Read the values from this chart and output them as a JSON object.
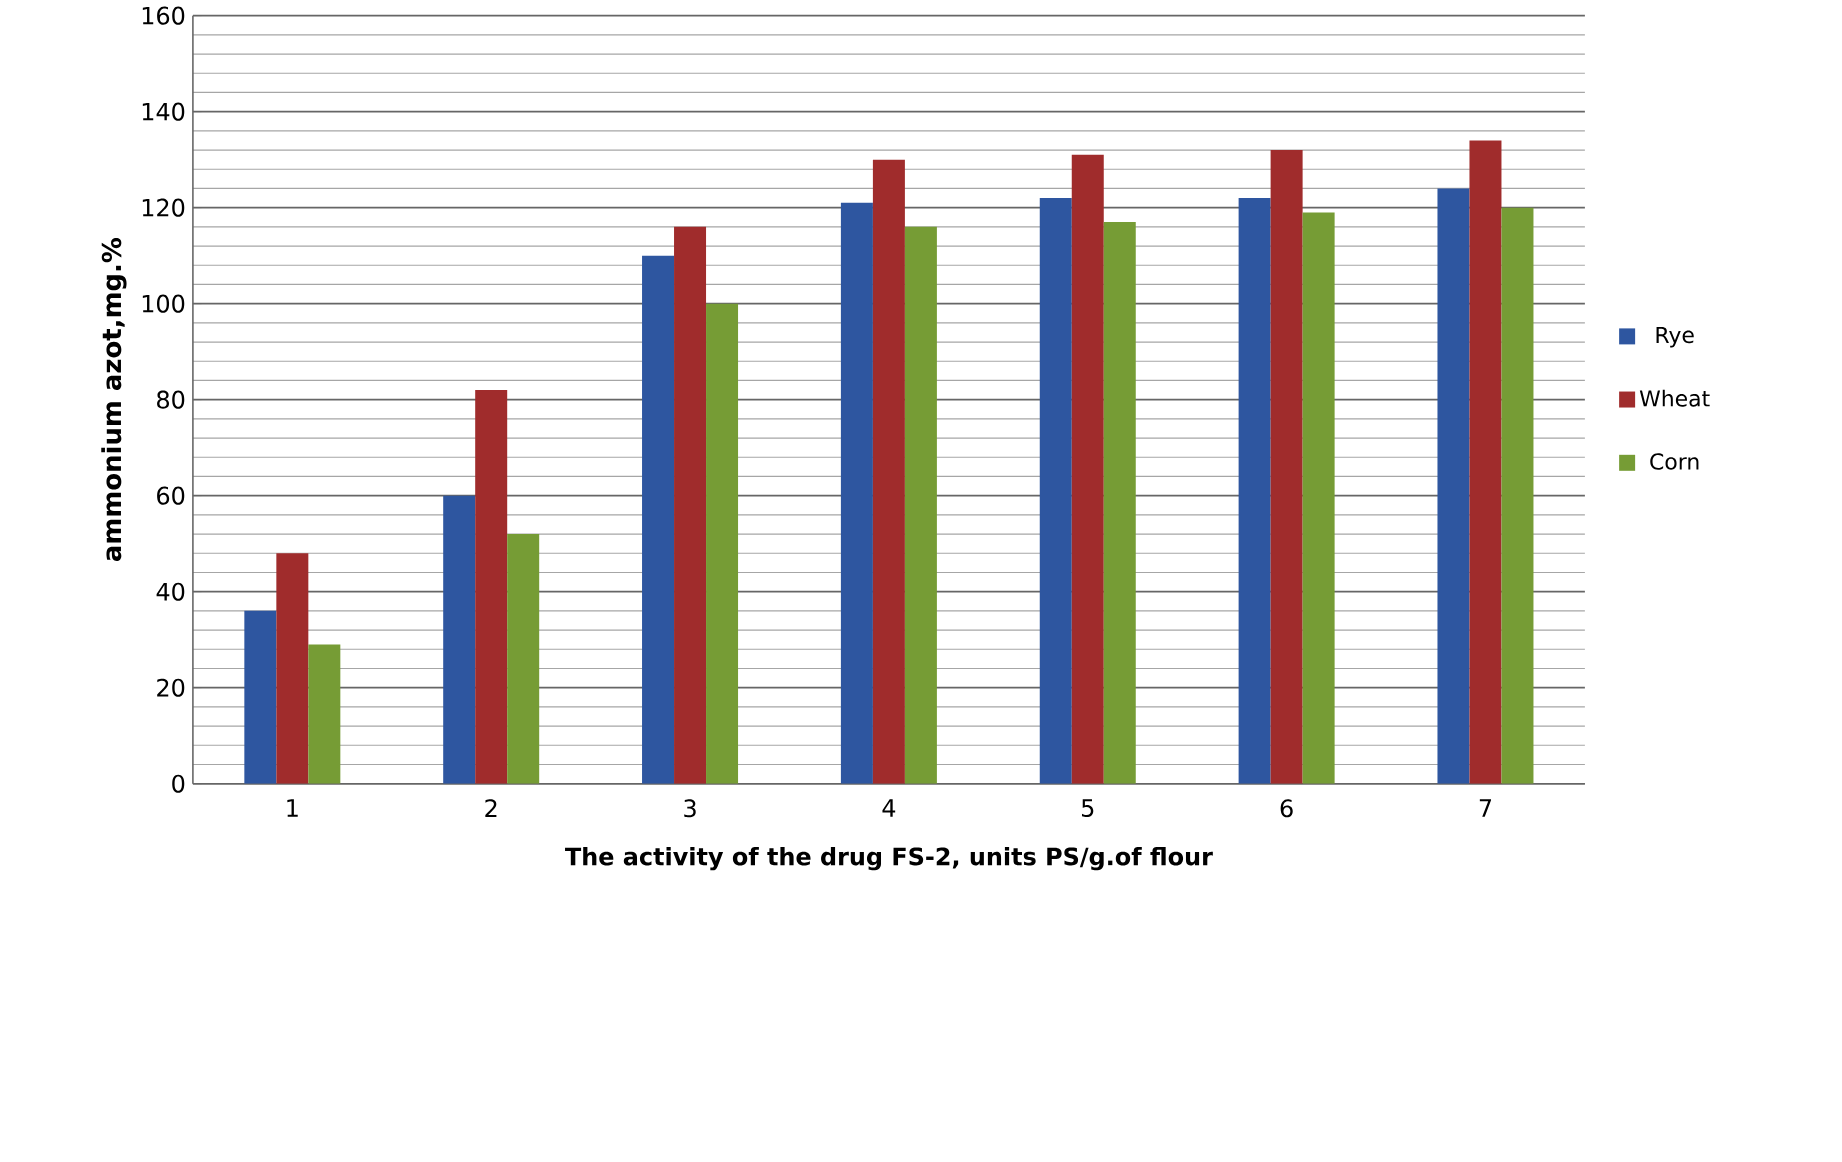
{
  "chart_data": {
    "type": "bar",
    "xlabel": "The activity of the drug FS-2, units PS/g.of flour",
    "ylabel": "ammonium azot,mg.%",
    "categories": [
      "1",
      "2",
      "3",
      "4",
      "5",
      "6",
      "7"
    ],
    "series": [
      {
        "name": "Rye",
        "color": "#2e56a0",
        "values": [
          36,
          60,
          110,
          121,
          122,
          122,
          124
        ]
      },
      {
        "name": "Wheat",
        "color": "#a02c2c",
        "values": [
          48,
          82,
          116,
          130,
          131,
          132,
          134
        ]
      },
      {
        "name": "Corn",
        "color": "#769c35",
        "values": [
          29,
          52,
          100,
          116,
          117,
          119,
          120
        ]
      }
    ],
    "ylim": [
      0,
      160
    ],
    "yticks": [
      0,
      20,
      40,
      60,
      80,
      100,
      120,
      140,
      160
    ],
    "grid": "y",
    "legend": "right"
  }
}
